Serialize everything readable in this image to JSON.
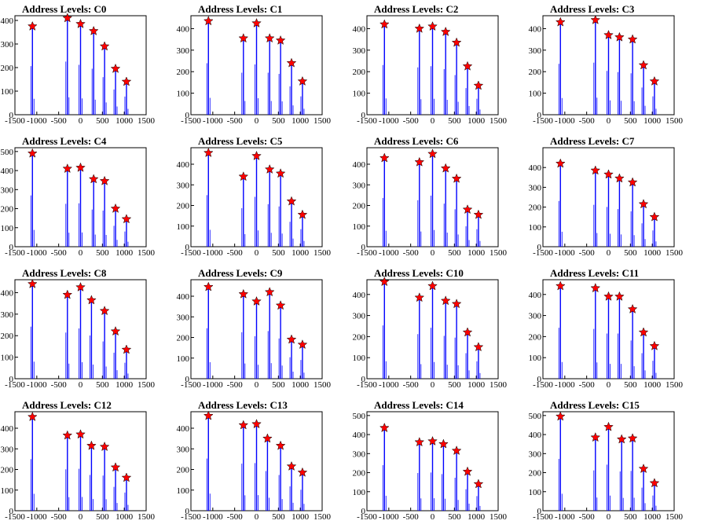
{
  "page": {
    "rows": 4,
    "cols": 4
  },
  "colors": {
    "bars": "#0000ff",
    "markers": "#ff0000",
    "axes": "#000000"
  },
  "chart_data": [
    {
      "type": "bar",
      "title": "Address Levels: C0",
      "xlim": [
        -1500,
        1500
      ],
      "ylim": [
        0,
        420
      ],
      "xticks": [
        "-1500",
        "-1000",
        "-500",
        "0",
        "500",
        "1000",
        "1500"
      ],
      "yticks": [
        "0",
        "100",
        "200",
        "300",
        "400"
      ],
      "peaks": [
        {
          "x": -1100,
          "y": 375
        },
        {
          "x": -300,
          "y": 410
        },
        {
          "x": 0,
          "y": 385
        },
        {
          "x": 300,
          "y": 355
        },
        {
          "x": 550,
          "y": 290
        },
        {
          "x": 800,
          "y": 195
        },
        {
          "x": 1050,
          "y": 140
        }
      ]
    },
    {
      "type": "bar",
      "title": "Address Levels: C1",
      "xlim": [
        -1500,
        1500
      ],
      "ylim": [
        0,
        460
      ],
      "xticks": [
        "-1500",
        "-1000",
        "-500",
        "0",
        "500",
        "1000",
        "1500"
      ],
      "yticks": [
        "0",
        "100",
        "200",
        "300",
        "400"
      ],
      "peaks": [
        {
          "x": -1100,
          "y": 435
        },
        {
          "x": -300,
          "y": 355
        },
        {
          "x": 0,
          "y": 425
        },
        {
          "x": 300,
          "y": 355
        },
        {
          "x": 550,
          "y": 345
        },
        {
          "x": 800,
          "y": 240
        },
        {
          "x": 1050,
          "y": 155
        }
      ]
    },
    {
      "type": "bar",
      "title": "Address Levels: C2",
      "xlim": [
        -1500,
        1500
      ],
      "ylim": [
        0,
        460
      ],
      "xticks": [
        "-1500",
        "-1000",
        "-500",
        "0",
        "500",
        "1000",
        "1500"
      ],
      "yticks": [
        "0",
        "100",
        "200",
        "300",
        "400"
      ],
      "peaks": [
        {
          "x": -1100,
          "y": 420
        },
        {
          "x": -300,
          "y": 400
        },
        {
          "x": 0,
          "y": 410
        },
        {
          "x": 300,
          "y": 385
        },
        {
          "x": 550,
          "y": 335
        },
        {
          "x": 800,
          "y": 225
        },
        {
          "x": 1050,
          "y": 135
        }
      ]
    },
    {
      "type": "bar",
      "title": "Address Levels: C3",
      "xlim": [
        -1500,
        1500
      ],
      "ylim": [
        0,
        460
      ],
      "xticks": [
        "-1500",
        "-1000",
        "-500",
        "0",
        "500",
        "1000",
        "1500"
      ],
      "yticks": [
        "0",
        "100",
        "200",
        "300",
        "400"
      ],
      "peaks": [
        {
          "x": -1100,
          "y": 430
        },
        {
          "x": -300,
          "y": 440
        },
        {
          "x": 0,
          "y": 370
        },
        {
          "x": 250,
          "y": 360
        },
        {
          "x": 550,
          "y": 350
        },
        {
          "x": 800,
          "y": 230
        },
        {
          "x": 1050,
          "y": 155
        }
      ]
    },
    {
      "type": "bar",
      "title": "Address Levels: C4",
      "xlim": [
        -1500,
        1500
      ],
      "ylim": [
        0,
        520
      ],
      "xticks": [
        "-1500",
        "-1000",
        "-500",
        "0",
        "500",
        "1000",
        "1500"
      ],
      "yticks": [
        "0",
        "100",
        "200",
        "300",
        "400",
        "500"
      ],
      "peaks": [
        {
          "x": -1100,
          "y": 490
        },
        {
          "x": -300,
          "y": 410
        },
        {
          "x": 0,
          "y": 415
        },
        {
          "x": 300,
          "y": 355
        },
        {
          "x": 550,
          "y": 345
        },
        {
          "x": 800,
          "y": 200
        },
        {
          "x": 1050,
          "y": 145
        }
      ]
    },
    {
      "type": "bar",
      "title": "Address Levels: C5",
      "xlim": [
        -1500,
        1500
      ],
      "ylim": [
        0,
        480
      ],
      "xticks": [
        "-1500",
        "-1000",
        "-500",
        "0",
        "500",
        "1000",
        "1500"
      ],
      "yticks": [
        "0",
        "100",
        "200",
        "300",
        "400"
      ],
      "peaks": [
        {
          "x": -1100,
          "y": 455
        },
        {
          "x": -300,
          "y": 340
        },
        {
          "x": 0,
          "y": 440
        },
        {
          "x": 300,
          "y": 375
        },
        {
          "x": 550,
          "y": 355
        },
        {
          "x": 800,
          "y": 220
        },
        {
          "x": 1050,
          "y": 155
        }
      ]
    },
    {
      "type": "bar",
      "title": "Address Levels: C6",
      "xlim": [
        -1500,
        1500
      ],
      "ylim": [
        0,
        480
      ],
      "xticks": [
        "-1500",
        "-1000",
        "-500",
        "0",
        "500",
        "1000",
        "1500"
      ],
      "yticks": [
        "0",
        "100",
        "200",
        "300",
        "400"
      ],
      "peaks": [
        {
          "x": -1100,
          "y": 430
        },
        {
          "x": -300,
          "y": 410
        },
        {
          "x": 0,
          "y": 450
        },
        {
          "x": 300,
          "y": 380
        },
        {
          "x": 550,
          "y": 330
        },
        {
          "x": 800,
          "y": 180
        },
        {
          "x": 1050,
          "y": 155
        }
      ]
    },
    {
      "type": "bar",
      "title": "Address Levels: C7",
      "xlim": [
        -1500,
        1500
      ],
      "ylim": [
        0,
        500
      ],
      "xticks": [
        "-1500",
        "-1000",
        "-500",
        "0",
        "500",
        "1000",
        "1500"
      ],
      "yticks": [
        "0",
        "100",
        "200",
        "300",
        "400"
      ],
      "peaks": [
        {
          "x": -1100,
          "y": 420
        },
        {
          "x": -300,
          "y": 385
        },
        {
          "x": 0,
          "y": 365
        },
        {
          "x": 250,
          "y": 345
        },
        {
          "x": 550,
          "y": 325
        },
        {
          "x": 800,
          "y": 215
        },
        {
          "x": 1050,
          "y": 150
        }
      ]
    },
    {
      "type": "bar",
      "title": "Address Levels: C8",
      "xlim": [
        -1500,
        1500
      ],
      "ylim": [
        0,
        460
      ],
      "xticks": [
        "-1500",
        "-1000",
        "-500",
        "0",
        "500",
        "1000",
        "1500"
      ],
      "yticks": [
        "0",
        "100",
        "200",
        "300",
        "400"
      ],
      "peaks": [
        {
          "x": -1100,
          "y": 440
        },
        {
          "x": -300,
          "y": 390
        },
        {
          "x": 0,
          "y": 425
        },
        {
          "x": 250,
          "y": 365
        },
        {
          "x": 550,
          "y": 315
        },
        {
          "x": 800,
          "y": 220
        },
        {
          "x": 1050,
          "y": 135
        }
      ]
    },
    {
      "type": "bar",
      "title": "Address Levels: C9",
      "xlim": [
        -1500,
        1500
      ],
      "ylim": [
        0,
        480
      ],
      "xticks": [
        "-1500",
        "-1000",
        "-500",
        "0",
        "500",
        "1000",
        "1500"
      ],
      "yticks": [
        "0",
        "100",
        "200",
        "300",
        "400"
      ],
      "peaks": [
        {
          "x": -1100,
          "y": 445
        },
        {
          "x": -300,
          "y": 410
        },
        {
          "x": 0,
          "y": 375
        },
        {
          "x": 300,
          "y": 420
        },
        {
          "x": 550,
          "y": 355
        },
        {
          "x": 800,
          "y": 190
        },
        {
          "x": 1050,
          "y": 165
        }
      ]
    },
    {
      "type": "bar",
      "title": "Address Levels: C10",
      "xlim": [
        -1500,
        1500
      ],
      "ylim": [
        0,
        470
      ],
      "xticks": [
        "-1500",
        "-1000",
        "-500",
        "0",
        "500",
        "1000",
        "1500"
      ],
      "yticks": [
        "0",
        "100",
        "200",
        "300",
        "400"
      ],
      "peaks": [
        {
          "x": -1100,
          "y": 460
        },
        {
          "x": -300,
          "y": 385
        },
        {
          "x": 0,
          "y": 440
        },
        {
          "x": 300,
          "y": 370
        },
        {
          "x": 550,
          "y": 355
        },
        {
          "x": 800,
          "y": 220
        },
        {
          "x": 1050,
          "y": 150
        }
      ]
    },
    {
      "type": "bar",
      "title": "Address Levels: C11",
      "xlim": [
        -1500,
        1500
      ],
      "ylim": [
        0,
        470
      ],
      "xticks": [
        "-1500",
        "-1000",
        "-500",
        "0",
        "500",
        "1000",
        "1500"
      ],
      "yticks": [
        "0",
        "100",
        "200",
        "300",
        "400"
      ],
      "peaks": [
        {
          "x": -1100,
          "y": 440
        },
        {
          "x": -300,
          "y": 430
        },
        {
          "x": 0,
          "y": 390
        },
        {
          "x": 250,
          "y": 390
        },
        {
          "x": 550,
          "y": 330
        },
        {
          "x": 800,
          "y": 220
        },
        {
          "x": 1050,
          "y": 155
        }
      ]
    },
    {
      "type": "bar",
      "title": "Address Levels: C12",
      "xlim": [
        -1500,
        1500
      ],
      "ylim": [
        0,
        480
      ],
      "xticks": [
        "-1500",
        "-1000",
        "-500",
        "0",
        "500",
        "1000",
        "1500"
      ],
      "yticks": [
        "0",
        "100",
        "200",
        "300",
        "400"
      ],
      "peaks": [
        {
          "x": -1100,
          "y": 455
        },
        {
          "x": -300,
          "y": 365
        },
        {
          "x": 0,
          "y": 370
        },
        {
          "x": 250,
          "y": 315
        },
        {
          "x": 550,
          "y": 310
        },
        {
          "x": 800,
          "y": 210
        },
        {
          "x": 1050,
          "y": 160
        }
      ]
    },
    {
      "type": "bar",
      "title": "Address Levels: C13",
      "xlim": [
        -1500,
        1500
      ],
      "ylim": [
        0,
        480
      ],
      "xticks": [
        "-1500",
        "-1000",
        "-500",
        "0",
        "500",
        "1000",
        "1500"
      ],
      "yticks": [
        "0",
        "100",
        "200",
        "300",
        "400"
      ],
      "peaks": [
        {
          "x": -1100,
          "y": 460
        },
        {
          "x": -300,
          "y": 415
        },
        {
          "x": 0,
          "y": 420
        },
        {
          "x": 250,
          "y": 350
        },
        {
          "x": 550,
          "y": 315
        },
        {
          "x": 800,
          "y": 215
        },
        {
          "x": 1050,
          "y": 185
        }
      ]
    },
    {
      "type": "bar",
      "title": "Address Levels: C14",
      "xlim": [
        -1500,
        1500
      ],
      "ylim": [
        0,
        520
      ],
      "xticks": [
        "-1500",
        "-1000",
        "-500",
        "0",
        "500",
        "1000",
        "1500"
      ],
      "yticks": [
        "0",
        "100",
        "200",
        "300",
        "400",
        "500"
      ],
      "peaks": [
        {
          "x": -1100,
          "y": 435
        },
        {
          "x": -300,
          "y": 360
        },
        {
          "x": 0,
          "y": 365
        },
        {
          "x": 250,
          "y": 350
        },
        {
          "x": 550,
          "y": 315
        },
        {
          "x": 800,
          "y": 205
        },
        {
          "x": 1050,
          "y": 140
        }
      ]
    },
    {
      "type": "bar",
      "title": "Address Levels: C15",
      "xlim": [
        -1500,
        1500
      ],
      "ylim": [
        0,
        520
      ],
      "xticks": [
        "-1500",
        "-1000",
        "-500",
        "0",
        "500",
        "1000",
        "1500"
      ],
      "yticks": [
        "0",
        "100",
        "200",
        "300",
        "400",
        "500"
      ],
      "peaks": [
        {
          "x": -1100,
          "y": 495
        },
        {
          "x": -300,
          "y": 385
        },
        {
          "x": 0,
          "y": 440
        },
        {
          "x": 300,
          "y": 375
        },
        {
          "x": 550,
          "y": 380
        },
        {
          "x": 800,
          "y": 220
        },
        {
          "x": 1050,
          "y": 145
        }
      ]
    }
  ]
}
